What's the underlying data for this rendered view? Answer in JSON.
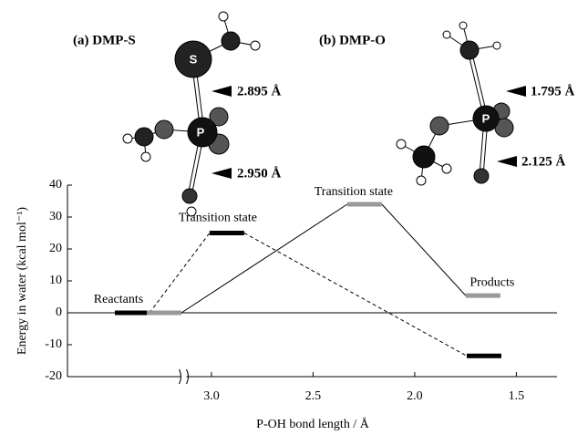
{
  "chart_data": {
    "type": "energy-profile",
    "ylabel": "Energy in water (kcal mol⁻¹)",
    "xlabel": "P-OH bond length / Å",
    "ylim": [
      -20,
      40
    ],
    "yticks": [
      -20,
      -10,
      0,
      10,
      20,
      30,
      40
    ],
    "xlim": [
      3.15,
      1.3
    ],
    "xticks": [
      {
        "value": 3,
        "label": "3.0"
      },
      2.5,
      {
        "value": 2,
        "label": "2.0"
      },
      1.5
    ],
    "states": [
      "Reactants",
      "Transition state",
      "Products"
    ],
    "series": [
      {
        "name": "(a) DMP-S",
        "color": "#000000",
        "style": "dashed",
        "x": [
          null,
          2.924,
          1.659
        ],
        "values": [
          0,
          25,
          -13.5
        ]
      },
      {
        "name": "(b) DMP-O",
        "color": "#999999",
        "style": "solid",
        "x": [
          null,
          2.247,
          1.664
        ],
        "values": [
          0,
          34,
          5.4
        ]
      }
    ],
    "annotations": [
      "S",
      "P",
      "2.895 Å",
      "2.950 Å",
      "P",
      "1.795 Å",
      "2.125 Å"
    ]
  }
}
